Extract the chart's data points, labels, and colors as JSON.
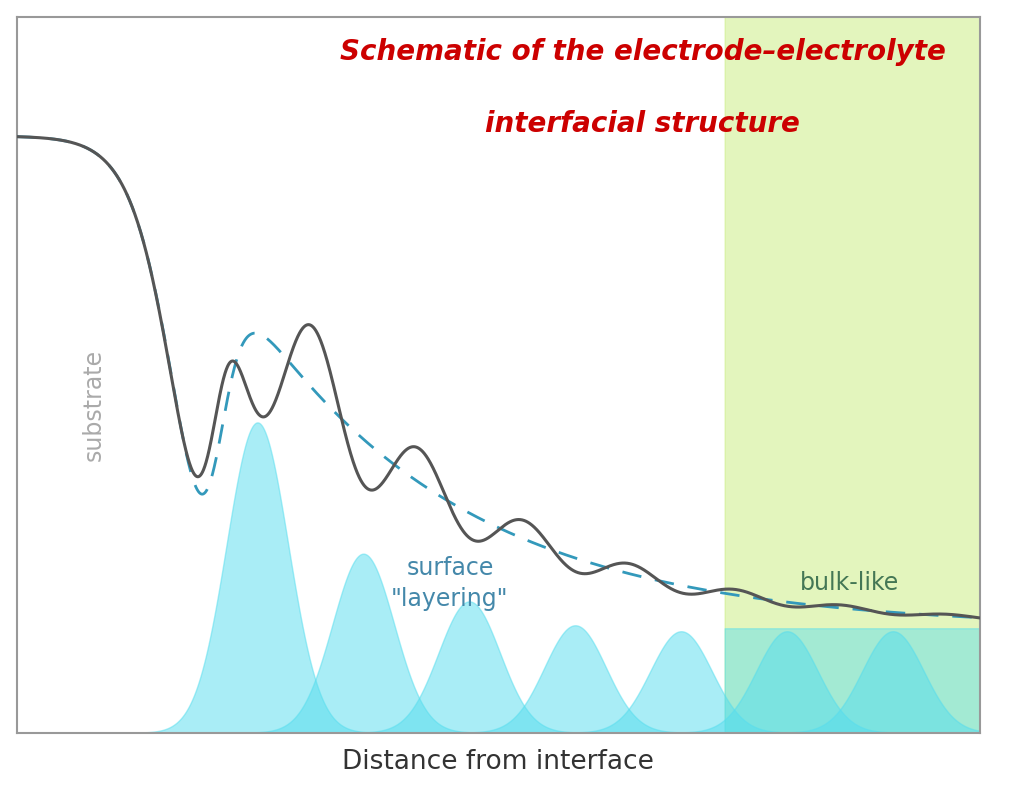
{
  "title_line1": "Schematic of the electrode–electrolyte",
  "title_line2": "interfacial structure",
  "title_color": "#cc0000",
  "xlabel": "Distance from interface",
  "xlabel_fontsize": 19,
  "title_fontsize": 20,
  "substrate_label": "substrate",
  "surface_layering_label": "surface\n\"layering\"",
  "bulk_like_label": "bulk-like",
  "bg_color": "#ffffff",
  "border_color": "#999999",
  "solid_line_color": "#555555",
  "dashed_line_color": "#3399bb",
  "bell_fill_color_cyan": "#55ddee",
  "bulk_rect_color_green": "#ccee88",
  "substrate_label_color": "#aaaaaa",
  "surface_label_color": "#4488aa",
  "bulk_label_color": "#447755"
}
